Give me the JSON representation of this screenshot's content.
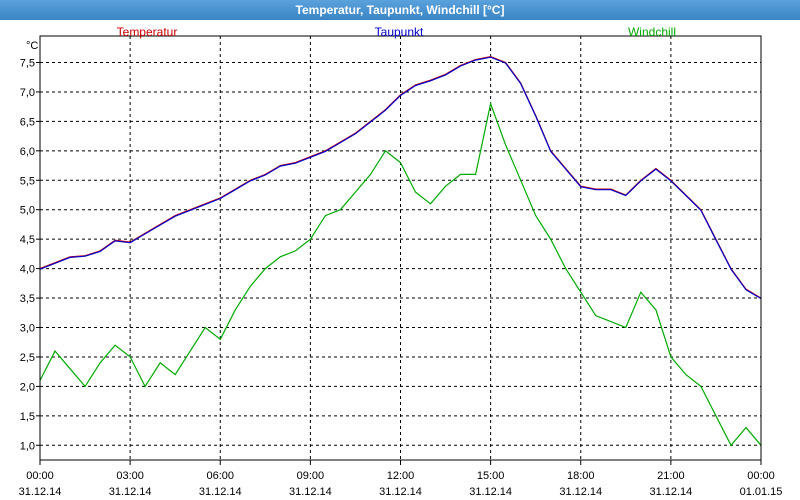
{
  "window": {
    "title": "Temperatur, Taupunkt, Windchill [°C]"
  },
  "chart_data": {
    "type": "line",
    "title": "Temperatur, Taupunkt, Windchill [°C]",
    "ylabel": "°C",
    "ylim": [
      0.75,
      7.95
    ],
    "yticks": [
      "1,0",
      "1,5",
      "2,0",
      "2,5",
      "3,0",
      "3,5",
      "4,0",
      "4,5",
      "5,0",
      "5,5",
      "6,0",
      "6,5",
      "7,0",
      "7,5"
    ],
    "ytick_values": [
      1.0,
      1.5,
      2.0,
      2.5,
      3.0,
      3.5,
      4.0,
      4.5,
      5.0,
      5.5,
      6.0,
      6.5,
      7.0,
      7.5
    ],
    "xlim": [
      0,
      24
    ],
    "xticks": [
      {
        "time": "00:00",
        "date": "31.12.14"
      },
      {
        "time": "03:00",
        "date": "31.12.14"
      },
      {
        "time": "06:00",
        "date": "31.12.14"
      },
      {
        "time": "09:00",
        "date": "31.12.14"
      },
      {
        "time": "12:00",
        "date": "31.12.14"
      },
      {
        "time": "15:00",
        "date": "31.12.14"
      },
      {
        "time": "18:00",
        "date": "31.12.14"
      },
      {
        "time": "21:00",
        "date": "31.12.14"
      },
      {
        "time": "00:00",
        "date": "01.01.15"
      }
    ],
    "grid": true,
    "legend_position": "top",
    "x": [
      0,
      0.5,
      1,
      1.5,
      2,
      2.5,
      3,
      3.5,
      4,
      4.5,
      5,
      5.5,
      6,
      6.5,
      7,
      7.5,
      8,
      8.5,
      9,
      9.5,
      10,
      10.5,
      11,
      11.5,
      12,
      12.5,
      13,
      13.5,
      14,
      14.5,
      15,
      15.5,
      16,
      16.5,
      17,
      17.5,
      18,
      18.5,
      19,
      19.5,
      20,
      20.5,
      21,
      21.5,
      22,
      22.5,
      23,
      23.5,
      24
    ],
    "series": [
      {
        "name": "Temperatur",
        "color": "#cc0000",
        "values": [
          4.0,
          4.1,
          4.2,
          4.22,
          4.3,
          4.48,
          4.45,
          4.6,
          4.75,
          4.9,
          5.0,
          5.1,
          5.2,
          5.35,
          5.5,
          5.6,
          5.75,
          5.8,
          5.9,
          6.0,
          6.15,
          6.3,
          6.5,
          6.7,
          6.95,
          7.12,
          7.2,
          7.3,
          7.45,
          7.55,
          7.6,
          7.5,
          7.15,
          6.6,
          6.0,
          5.7,
          5.4,
          5.35,
          5.35,
          5.25,
          5.5,
          5.7,
          5.5,
          5.25,
          5.0,
          4.5,
          4.0,
          3.65,
          3.5
        ]
      },
      {
        "name": "Taupunkt",
        "color": "#0000cc",
        "values": [
          3.99,
          4.09,
          4.19,
          4.21,
          4.29,
          4.47,
          4.44,
          4.59,
          4.74,
          4.89,
          4.99,
          5.09,
          5.19,
          5.34,
          5.49,
          5.59,
          5.74,
          5.79,
          5.89,
          5.99,
          6.14,
          6.29,
          6.49,
          6.69,
          6.94,
          7.11,
          7.19,
          7.29,
          7.44,
          7.54,
          7.59,
          7.49,
          7.14,
          6.59,
          5.99,
          5.69,
          5.39,
          5.34,
          5.34,
          5.24,
          5.49,
          5.69,
          5.49,
          5.24,
          4.99,
          4.49,
          3.99,
          3.64,
          3.49
        ]
      },
      {
        "name": "Windchill",
        "color": "#00aa00",
        "values": [
          2.1,
          2.6,
          2.3,
          2.0,
          2.4,
          2.7,
          2.5,
          2.0,
          2.4,
          2.2,
          2.6,
          3.0,
          2.8,
          3.3,
          3.7,
          4.0,
          4.2,
          4.3,
          4.5,
          4.9,
          5.0,
          5.3,
          5.6,
          6.0,
          5.8,
          5.3,
          5.1,
          5.4,
          5.6,
          5.6,
          6.8,
          6.1,
          5.5,
          4.9,
          4.5,
          4.0,
          3.6,
          3.2,
          3.1,
          3.0,
          3.6,
          3.3,
          2.5,
          2.2,
          2.0,
          1.5,
          1.0,
          1.3,
          1.0
        ]
      }
    ]
  }
}
